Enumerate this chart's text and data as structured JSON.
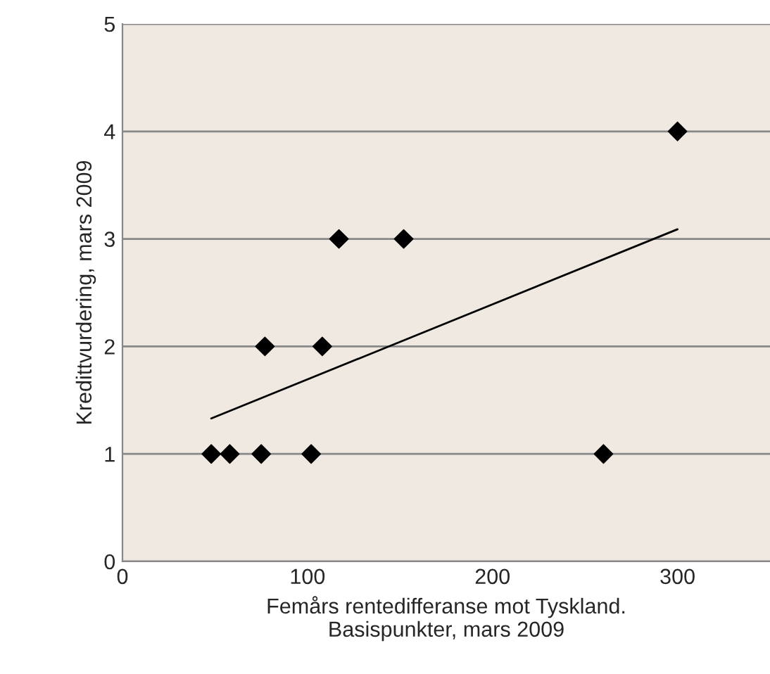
{
  "chart_data": {
    "type": "scatter",
    "xlabel": "Femårs rentedifferanse mot Tyskland.\nBasispunkter, mars 2009",
    "ylabel": "Kredittvurdering, mars 2009",
    "series": [
      {
        "marker": "diamond",
        "color": "#000000",
        "x": [
          48,
          58,
          75,
          102,
          260,
          77,
          108,
          117,
          152,
          300
        ],
        "values": [
          1,
          1,
          1,
          1,
          1,
          2,
          2,
          3,
          3,
          4
        ]
      },
      {
        "type": "line",
        "color": "#000000",
        "x": [
          48,
          300
        ],
        "values": [
          1.33,
          3.09
        ]
      }
    ],
    "xlim": [
      0,
      350
    ],
    "xticks": [
      0,
      100,
      200,
      300
    ],
    "ylim": [
      0,
      5
    ],
    "yticks": [
      0,
      1,
      2,
      3,
      4,
      5
    ],
    "grid": "y"
  }
}
